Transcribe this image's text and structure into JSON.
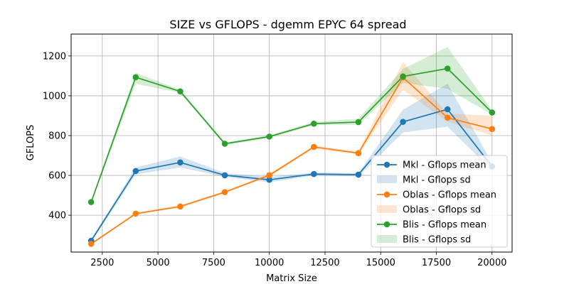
{
  "chart_data": {
    "type": "line",
    "title": "SIZE vs GFLOPS - dgemm  EPYC 64 spread",
    "xlabel": "Matrix Size",
    "ylabel": "GFLOPS",
    "xlim": [
      1100,
      20900
    ],
    "ylim": [
      215,
      1310
    ],
    "xticks": [
      2500,
      5000,
      7500,
      10000,
      12500,
      15000,
      17500,
      20000
    ],
    "yticks": [
      400,
      600,
      800,
      1000,
      1200
    ],
    "grid": true,
    "legend_position": "lower right",
    "x": [
      2000,
      4000,
      6000,
      8000,
      10000,
      12000,
      14000,
      16000,
      18000,
      20000
    ],
    "series": [
      {
        "name": "Mkl - Gflops mean",
        "band_name": "Mkl - Gflops sd",
        "color": "#1f77b4",
        "values": [
          272,
          622,
          665,
          601,
          578,
          607,
          604,
          869,
          932,
          645
        ],
        "lower": [
          265,
          605,
          640,
          592,
          565,
          600,
          595,
          815,
          845,
          625
        ],
        "upper": [
          280,
          640,
          695,
          612,
          592,
          614,
          612,
          930,
          1060,
          665
        ]
      },
      {
        "name": "Oblas - Gflops mean",
        "band_name": "Oblas - Gflops sd",
        "color": "#ff7f0e",
        "values": [
          256,
          408,
          444,
          516,
          601,
          743,
          712,
          1092,
          890,
          833
        ],
        "lower": [
          252,
          403,
          438,
          510,
          595,
          735,
          705,
          1030,
          870,
          800
        ],
        "upper": [
          260,
          413,
          450,
          522,
          608,
          750,
          720,
          1170,
          910,
          900
        ]
      },
      {
        "name": "Blis - Gflops mean",
        "band_name": "Blis - Gflops sd",
        "color": "#2ca02c",
        "values": [
          466,
          1093,
          1022,
          759,
          795,
          860,
          868,
          1097,
          1137,
          916
        ],
        "lower": [
          460,
          1060,
          1015,
          752,
          788,
          852,
          855,
          1065,
          1035,
          905
        ],
        "upper": [
          472,
          1115,
          1030,
          766,
          802,
          868,
          885,
          1135,
          1245,
          928
        ]
      }
    ]
  }
}
